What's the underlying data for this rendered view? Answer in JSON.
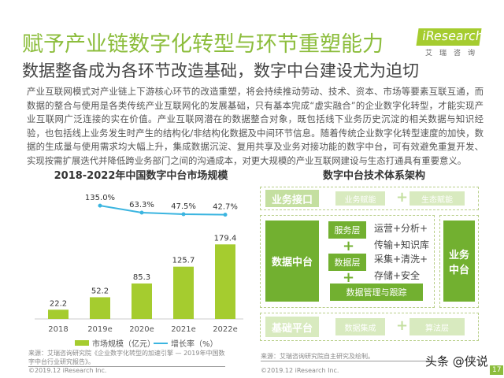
{
  "header": {
    "title": "赋予产业链数字化转型与环节重塑能力",
    "subtitle": "数据整备成为各环节改造基础，数字中台建设尤为迫切",
    "logo": "iResearch",
    "logo_sub": "艾瑞咨询"
  },
  "body_text": "产业互联网模式对产业链上下游核心环节的改造重塑，将会持续推动劳动、技术、资本、市场等要素互联互通，而数据的整合与使用是各类传统产业互联网化的发展基础，只有基本完成“虚实融合”的企业数字化转型，才能实现产业互联网广泛连接的实在价值。产业互联网潜在的数据整合对象，既包括线下业务历史沉淀的相关数据与知识经验，也包括线上业务发生时产生的结构化/非结构化数据及中间环节信息。随着传统企业数字化转型速度的加快，数据的生成量与使用需求均大幅上升，集成数据沉淀、复用共享及业务对接功能的数字中台，可有效避免重复开发、实现按需扩展迭代并降低跨业务部门之间的沟通成本，对更大规模的产业互联网建设与生态打通具有重要意义。",
  "chart_data": {
    "type": "bar",
    "title": "2018-2022年中国数字中台市场规模",
    "categories": [
      "2018",
      "2019e",
      "2020e",
      "2021e",
      "2022e"
    ],
    "series": [
      {
        "name": "市场规模（亿元）",
        "type": "bar",
        "values": [
          22.2,
          52.2,
          85.3,
          125.7,
          179.4
        ],
        "value_labels": [
          "22.2",
          "52.2",
          "85.3",
          "125.7",
          "179.4"
        ],
        "color": "#a5cc2f"
      },
      {
        "name": "增长率（%）",
        "type": "line",
        "values": [
          null,
          135.0,
          63.3,
          47.5,
          42.7
        ],
        "value_labels": [
          "",
          "135.0%",
          "63.3%",
          "47.5%",
          "42.7%"
        ],
        "color": "#3bb5e0"
      }
    ]
  },
  "chart_source": "来源：艾瑞咨询研究院《企业数字化转型的加速引擎 — 2019年中国数字中台行业研究报告》。",
  "copyright": "©2019.12 iResearch Inc.",
  "arch": {
    "title": "数字中台技术体系架构",
    "top_label": "业务接口",
    "top_items": [
      "业务赋能",
      "生态赋能"
    ],
    "data_mid": "数据中台",
    "service_layer": "服务层",
    "service_desc": [
      "运营+分析+",
      "传输+知识库"
    ],
    "data_layer": "数据层",
    "data_desc": [
      "采集+清洗+",
      "存储+安全"
    ],
    "data_mgmt": "数据管理与跟踪",
    "biz_mid": "业务\n中台",
    "bottom_label": "基础平台",
    "bottom_items": [
      "数据集成",
      "算法层"
    ],
    "plus": "+"
  },
  "arch_source": "来源：艾瑞咨询研究院自主研究及绘制。",
  "page_number": "17",
  "watermark": "头条 @侠说"
}
